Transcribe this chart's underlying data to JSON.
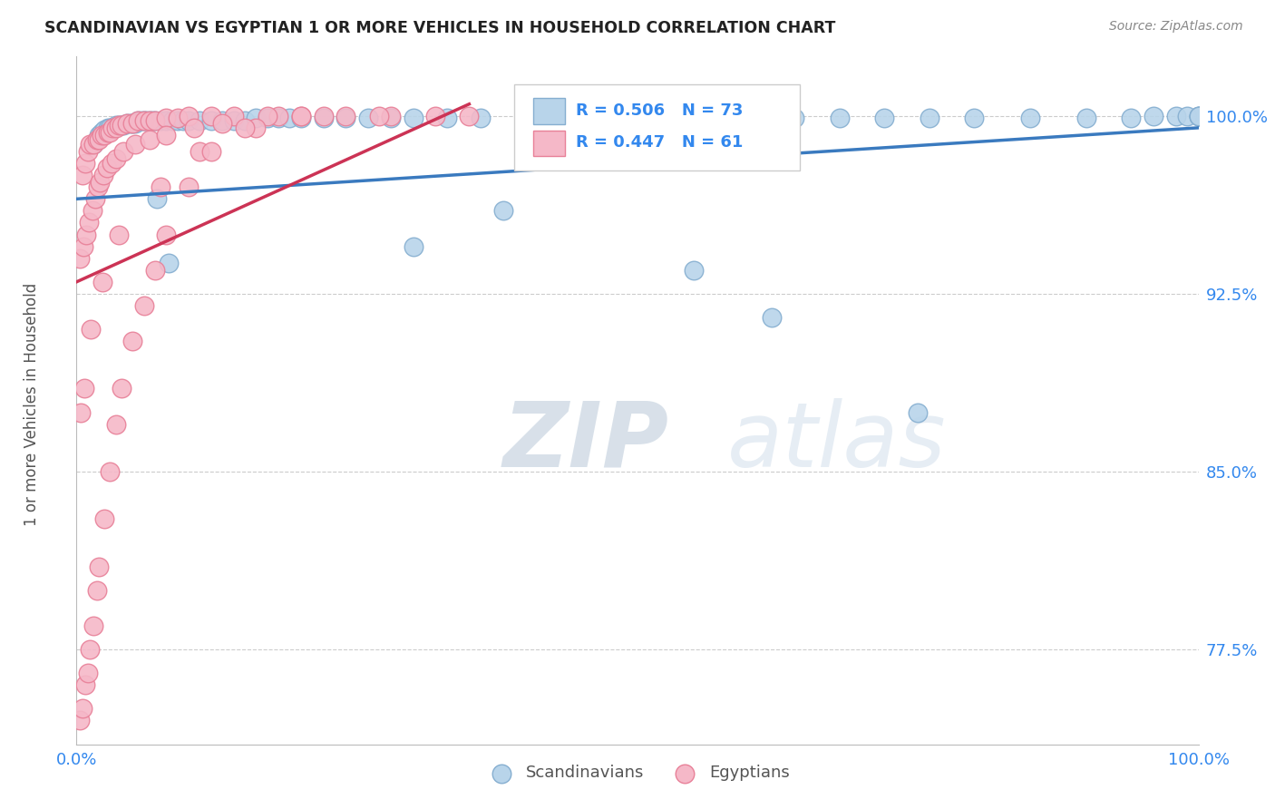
{
  "title": "SCANDINAVIAN VS EGYPTIAN 1 OR MORE VEHICLES IN HOUSEHOLD CORRELATION CHART",
  "source": "Source: ZipAtlas.com",
  "ylabel": "1 or more Vehicles in Household",
  "yticks": [
    77.5,
    85.0,
    92.5,
    100.0
  ],
  "ytick_labels": [
    "77.5%",
    "85.0%",
    "92.5%",
    "100.0%"
  ],
  "xlim": [
    0,
    100
  ],
  "ylim": [
    73.5,
    102.5
  ],
  "legend_r1": "R = 0.506",
  "legend_n1": "N = 73",
  "legend_r2": "R = 0.447",
  "legend_n2": "N = 61",
  "series1_color": "#b8d4ea",
  "series1_edge": "#85aed0",
  "series2_color": "#f5b8c8",
  "series2_edge": "#e88098",
  "trendline1_color": "#3a7abf",
  "trendline2_color": "#cc3355",
  "watermark_zip": "ZIP",
  "watermark_atlas": "atlas",
  "watermark_color_zip": "#c0cfe0",
  "watermark_color_atlas": "#c8d8e8",
  "scandinavians_x": [
    1.5,
    1.8,
    2.0,
    2.2,
    2.5,
    2.8,
    3.0,
    3.2,
    3.5,
    3.8,
    4.0,
    4.2,
    4.5,
    4.8,
    5.0,
    5.2,
    5.5,
    5.8,
    6.0,
    6.2,
    6.5,
    6.8,
    7.0,
    7.5,
    8.0,
    8.5,
    9.0,
    9.5,
    10.0,
    11.0,
    12.0,
    13.0,
    14.0,
    15.0,
    16.0,
    17.0,
    18.0,
    19.0,
    20.0,
    22.0,
    24.0,
    26.0,
    28.0,
    30.0,
    33.0,
    36.0,
    40.0,
    44.0,
    48.0,
    52.0,
    56.0,
    60.0,
    64.0,
    68.0,
    72.0,
    76.0,
    80.0,
    85.0,
    90.0,
    94.0,
    96.0,
    98.0,
    99.0,
    100.0,
    100.0,
    100.0,
    7.2,
    8.2,
    30.0,
    38.0,
    55.0,
    62.0,
    75.0
  ],
  "scandinavians_y": [
    98.8,
    99.0,
    99.2,
    99.3,
    99.4,
    99.5,
    99.5,
    99.5,
    99.6,
    99.6,
    99.6,
    99.6,
    99.7,
    99.7,
    99.7,
    99.7,
    99.8,
    99.8,
    99.8,
    99.8,
    99.8,
    99.8,
    99.8,
    99.8,
    99.8,
    99.8,
    99.8,
    99.8,
    99.8,
    99.8,
    99.8,
    99.8,
    99.8,
    99.8,
    99.9,
    99.9,
    99.9,
    99.9,
    99.9,
    99.9,
    99.9,
    99.9,
    99.9,
    99.9,
    99.9,
    99.9,
    99.9,
    99.9,
    99.9,
    99.9,
    99.9,
    99.9,
    99.9,
    99.9,
    99.9,
    99.9,
    99.9,
    99.9,
    99.9,
    99.9,
    100.0,
    100.0,
    100.0,
    100.0,
    100.0,
    100.0,
    96.5,
    93.8,
    94.5,
    96.0,
    93.5,
    91.5,
    87.5
  ],
  "egyptians_x": [
    0.5,
    0.8,
    1.0,
    1.2,
    1.5,
    1.8,
    2.0,
    2.2,
    2.5,
    2.8,
    3.0,
    3.2,
    3.5,
    3.8,
    4.0,
    4.5,
    5.0,
    5.5,
    6.0,
    6.5,
    7.0,
    8.0,
    9.0,
    10.0,
    12.0,
    14.0,
    18.0,
    22.0,
    28.0,
    35.0,
    0.3,
    0.6,
    0.9,
    1.1,
    1.4,
    1.7,
    1.9,
    2.1,
    2.4,
    2.7,
    3.1,
    3.5,
    4.2,
    5.2,
    6.5,
    8.0,
    10.5,
    13.0,
    17.0,
    24.0,
    32.0,
    0.4,
    0.7,
    1.3,
    2.3,
    3.8,
    7.5,
    11.0,
    16.0,
    20.0,
    27.0
  ],
  "egyptians_y": [
    97.5,
    98.0,
    98.5,
    98.8,
    98.8,
    99.0,
    99.0,
    99.2,
    99.2,
    99.3,
    99.3,
    99.5,
    99.5,
    99.6,
    99.6,
    99.7,
    99.7,
    99.8,
    99.8,
    99.8,
    99.8,
    99.9,
    99.9,
    100.0,
    100.0,
    100.0,
    100.0,
    100.0,
    100.0,
    100.0,
    94.0,
    94.5,
    95.0,
    95.5,
    96.0,
    96.5,
    97.0,
    97.2,
    97.5,
    97.8,
    98.0,
    98.2,
    98.5,
    98.8,
    99.0,
    99.2,
    99.5,
    99.7,
    100.0,
    100.0,
    100.0,
    87.5,
    88.5,
    91.0,
    93.0,
    95.0,
    97.0,
    98.5,
    99.5,
    100.0,
    100.0
  ],
  "egyptians_low_x": [
    0.3,
    0.5,
    0.8,
    1.0,
    1.2,
    1.5,
    1.8,
    2.0,
    2.5,
    3.0,
    3.5,
    4.0,
    5.0,
    6.0,
    7.0,
    8.0,
    10.0,
    12.0,
    15.0,
    20.0
  ],
  "egyptians_low_y": [
    74.5,
    75.0,
    76.0,
    76.5,
    77.5,
    78.5,
    80.0,
    81.0,
    83.0,
    85.0,
    87.0,
    88.5,
    90.5,
    92.0,
    93.5,
    95.0,
    97.0,
    98.5,
    99.5,
    100.0
  ],
  "trendline1_x0": 0,
  "trendline1_y0": 96.5,
  "trendline1_x1": 100,
  "trendline1_y1": 99.5,
  "trendline2_x0": 0,
  "trendline2_y0": 93.0,
  "trendline2_x1": 35,
  "trendline2_y1": 100.5
}
